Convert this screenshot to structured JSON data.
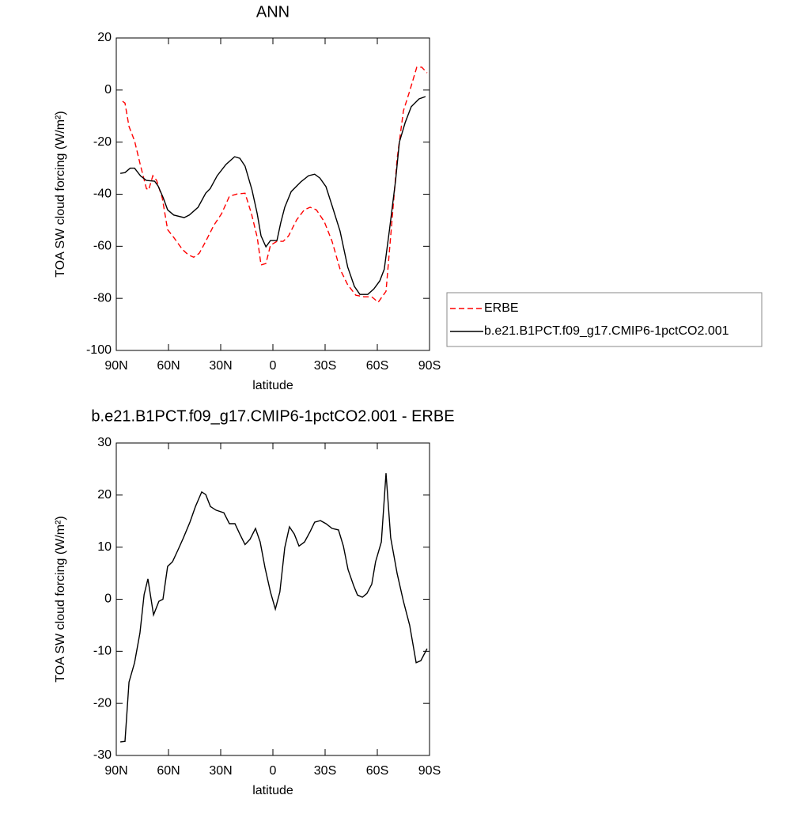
{
  "chart_data": [
    {
      "type": "line",
      "title": "ANN",
      "xlabel": "latitude",
      "ylabel": "TOA SW cloud forcing (W/m²)",
      "xlim": [
        90,
        -90
      ],
      "ylim": [
        -100,
        20
      ],
      "xticks": [
        {
          "value": 90,
          "label": "90N"
        },
        {
          "value": 60,
          "label": "60N"
        },
        {
          "value": 30,
          "label": "30N"
        },
        0,
        {
          "value": -30,
          "label": "30S"
        },
        {
          "value": -60,
          "label": "60S"
        },
        {
          "value": -90,
          "label": "90S"
        }
      ],
      "yticks": [
        -100,
        -80,
        -60,
        -40,
        -20,
        0,
        20
      ],
      "legend": "right",
      "series": [
        {
          "name": "ERBE",
          "color": "#ff0000",
          "style": "dashed",
          "x": [
            86.4,
            85,
            82.7,
            79.5,
            76,
            72.7,
            71.4,
            69,
            66.8,
            63.6,
            60.5,
            57,
            52,
            48.6,
            45.5,
            42.3,
            38.6,
            34,
            29.5,
            25,
            20.5,
            16,
            12.3,
            9,
            6.8,
            4,
            1.4,
            -2.3,
            -5.9,
            -9,
            -13.6,
            -18,
            -21.4,
            -25,
            -29.5,
            -34,
            -38.6,
            -43,
            -47.7,
            -52.3,
            -56.8,
            -60.5,
            -65,
            -68,
            -71.4,
            -75,
            -78.6,
            -82.7,
            -85.5,
            -88.6
          ],
          "values": [
            -4.3,
            -5,
            -14,
            -19.5,
            -29.2,
            -37.8,
            -38.4,
            -32.9,
            -34.7,
            -41.4,
            -53.6,
            -56.6,
            -61.2,
            -63.3,
            -64.2,
            -62.7,
            -58.1,
            -52,
            -47.5,
            -40.8,
            -39.9,
            -39.6,
            -47.5,
            -56.6,
            -67.2,
            -66.6,
            -59.6,
            -58.1,
            -58.1,
            -56,
            -49.9,
            -46,
            -45,
            -46,
            -50.5,
            -58.1,
            -68.8,
            -74.8,
            -78.8,
            -79.4,
            -79.4,
            -81.5,
            -77.3,
            -53.6,
            -26.2,
            -8,
            -0.4,
            8.8,
            8.8,
            6.6
          ]
        },
        {
          "name": "b.e21.B1PCT.f09_g17.CMIP6-1pctCO2.001",
          "color": "#000000",
          "style": "solid",
          "x": [
            87.7,
            85,
            82,
            79.5,
            76,
            72.7,
            68,
            66,
            63,
            60.5,
            57,
            51,
            48,
            43,
            38.6,
            36,
            32,
            27,
            22,
            19,
            16,
            12,
            9,
            6.8,
            4,
            1.4,
            -2.3,
            -4.5,
            -6.8,
            -10.5,
            -16,
            -20.5,
            -24,
            -27,
            -30.5,
            -34,
            -38.6,
            -43,
            -46.8,
            -50,
            -54.5,
            -58,
            -61.4,
            -64,
            -67,
            -70.5,
            -72.7,
            -76,
            -79.5,
            -84,
            -87.7
          ],
          "values": [
            -32,
            -31.7,
            -30,
            -30,
            -33,
            -34.7,
            -35,
            -36.8,
            -41.4,
            -46,
            -48,
            -49,
            -48,
            -45,
            -39.6,
            -37.8,
            -32.9,
            -28.6,
            -25.6,
            -26.2,
            -29.2,
            -38.4,
            -47.5,
            -56,
            -60.2,
            -57.8,
            -57.8,
            -51,
            -45,
            -39,
            -35.3,
            -32.9,
            -32.3,
            -33.8,
            -37.1,
            -44.4,
            -54.2,
            -68,
            -75.4,
            -78.5,
            -78.5,
            -76.4,
            -73.3,
            -68.8,
            -53.6,
            -34.7,
            -20,
            -12.5,
            -6.4,
            -3.4,
            -2.5
          ]
        }
      ]
    },
    {
      "type": "line",
      "title": "b.e21.B1PCT.f09_g17.CMIP6-1pctCO2.001 - ERBE",
      "xlabel": "latitude",
      "ylabel": "TOA SW cloud forcing (W/m²)",
      "xlim": [
        90,
        -90
      ],
      "ylim": [
        -30,
        30
      ],
      "xticks": [
        {
          "value": 90,
          "label": "90N"
        },
        {
          "value": 60,
          "label": "60N"
        },
        {
          "value": 30,
          "label": "30N"
        },
        0,
        {
          "value": -30,
          "label": "30S"
        },
        {
          "value": -60,
          "label": "60S"
        },
        {
          "value": -90,
          "label": "90S"
        }
      ],
      "yticks": [
        -30,
        -20,
        -10,
        0,
        10,
        20,
        30
      ],
      "series": [
        {
          "color": "#000000",
          "style": "solid",
          "x": [
            87.7,
            85,
            82.7,
            79.5,
            76.4,
            74,
            71.8,
            68.6,
            65.5,
            63.2,
            60.5,
            57.7,
            54.5,
            51.4,
            47.7,
            44.5,
            40.9,
            38.6,
            35.9,
            32.7,
            28.2,
            25,
            21.8,
            19,
            16,
            13.2,
            10,
            7.3,
            4.5,
            1.4,
            -1.4,
            -4,
            -6.8,
            -9.5,
            -12.3,
            -15,
            -18.2,
            -21.4,
            -24,
            -27.3,
            -30.5,
            -34,
            -37.7,
            -40.5,
            -43.2,
            -46.4,
            -48.6,
            -51.4,
            -54,
            -56.8,
            -59,
            -62.3,
            -65,
            -67.7,
            -71.4,
            -75,
            -78.6,
            -82.3,
            -85,
            -88.6
          ],
          "values": [
            -27.4,
            -27.3,
            -15.9,
            -12.2,
            -6.5,
            0.9,
            3.9,
            -3,
            -0.4,
            0,
            6.3,
            7.2,
            9.5,
            11.8,
            14.8,
            17.8,
            20.6,
            20.1,
            17.8,
            17.1,
            16.6,
            14.5,
            14.5,
            12.5,
            10.5,
            11.5,
            13.6,
            11,
            6,
            1.4,
            -1.9,
            1.4,
            9.9,
            13.9,
            12.5,
            10.2,
            11,
            13,
            14.8,
            15.1,
            14.5,
            13.6,
            13.3,
            10.2,
            5.7,
            2.6,
            0.8,
            0.4,
            1.1,
            2.9,
            7.2,
            11,
            24.2,
            11.8,
            4.9,
            -0.4,
            -5,
            -12.2,
            -11.8,
            -9.5
          ]
        }
      ]
    }
  ]
}
